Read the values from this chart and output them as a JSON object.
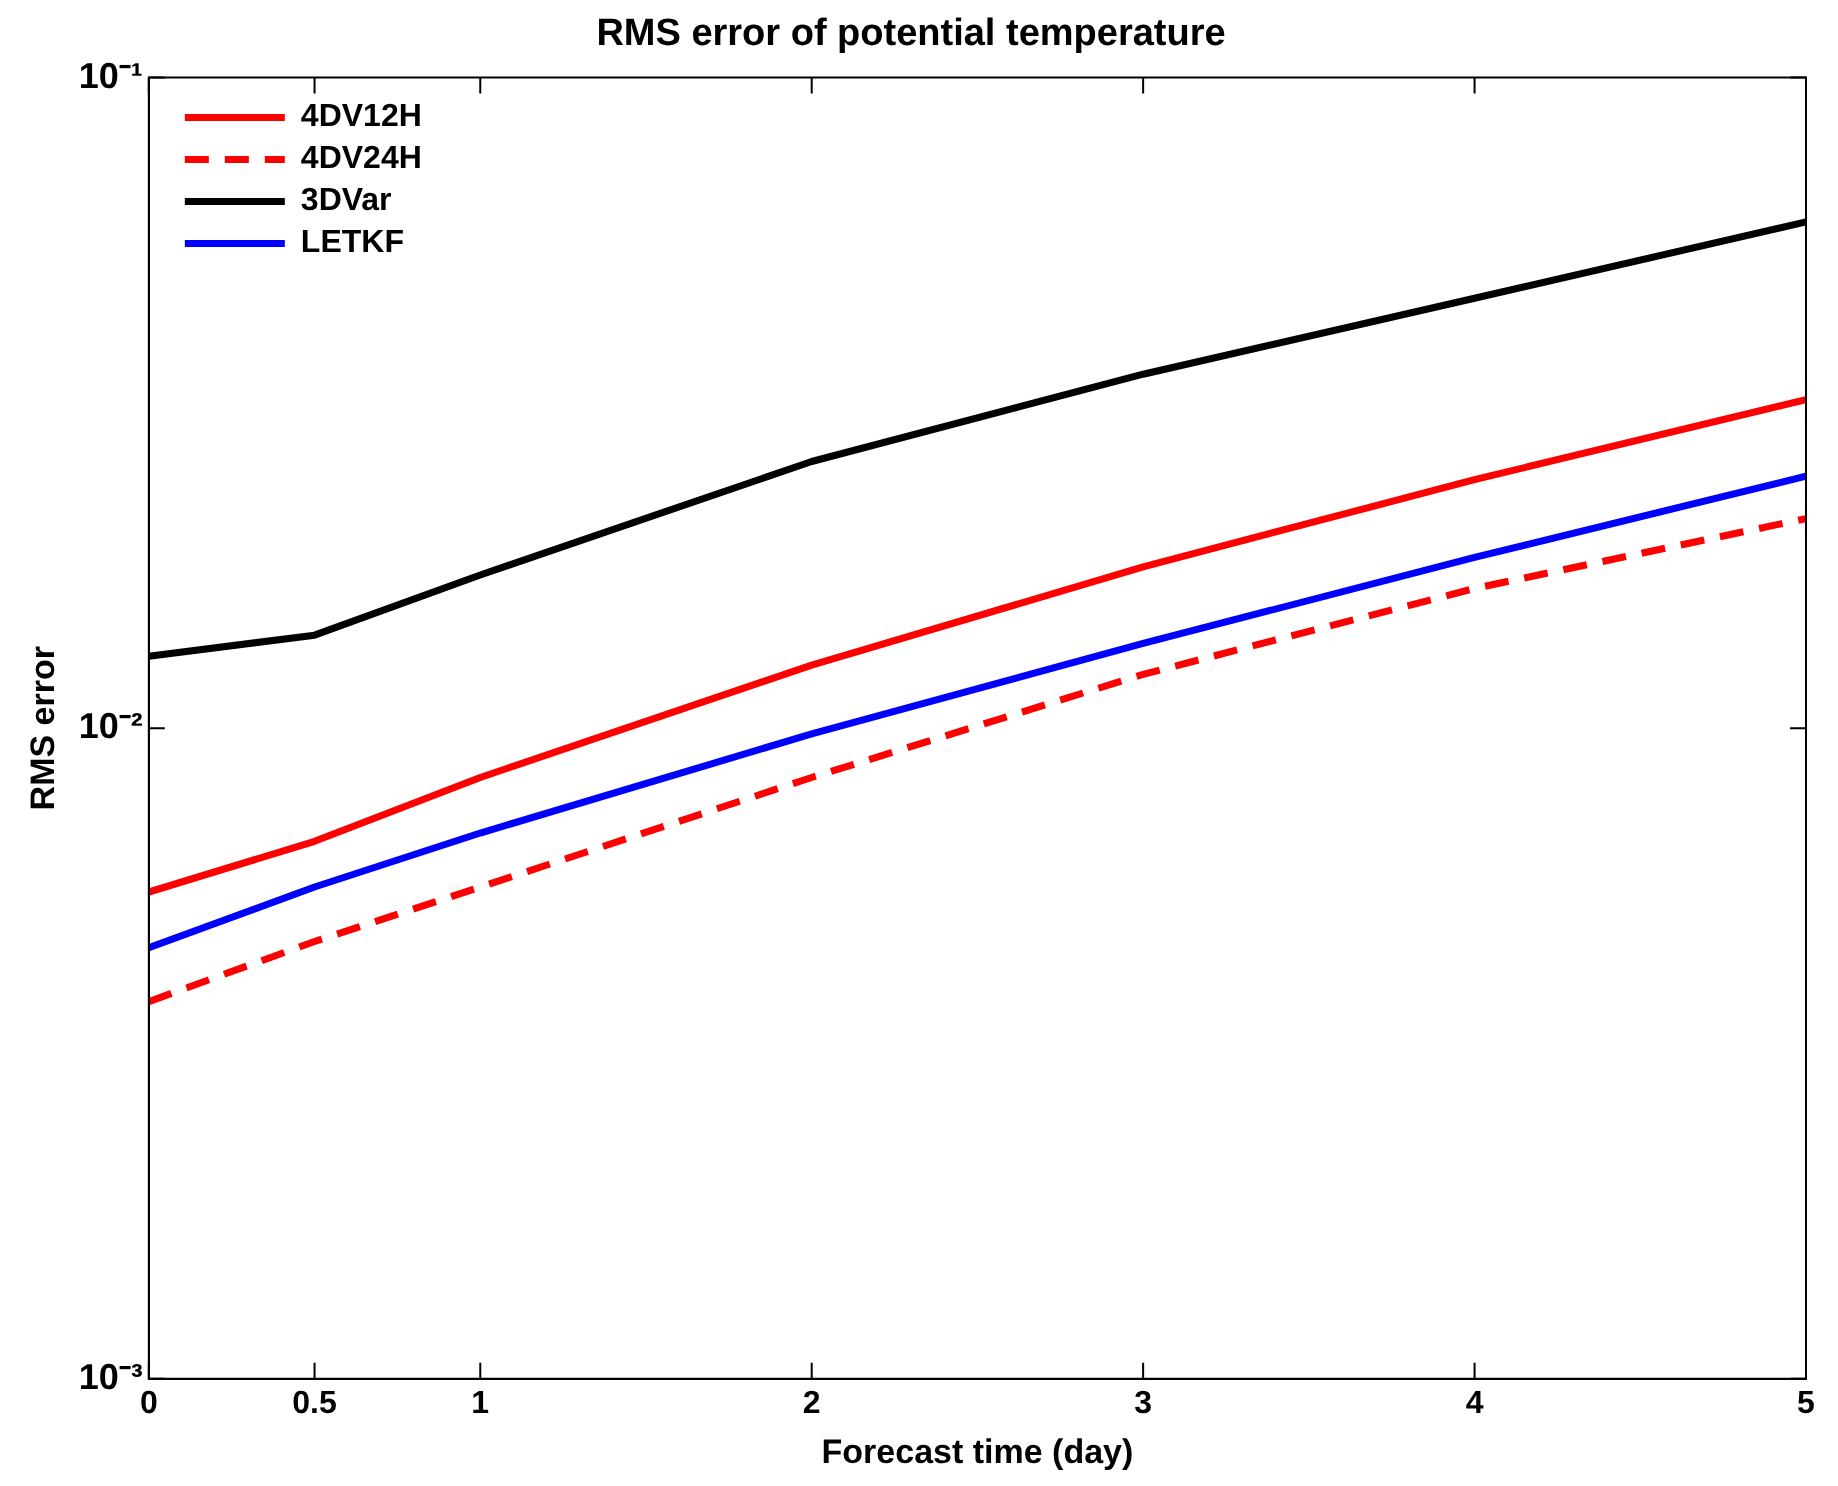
{
  "chart_data": {
    "type": "line",
    "title": "RMS error of potential temperature",
    "xlabel": "Forecast time (day)",
    "ylabel": "RMS error",
    "x": [
      0,
      0.5,
      1,
      2,
      3,
      4,
      5
    ],
    "series": [
      {
        "name": "4DV12H",
        "color": "#ff0000",
        "line_style": "solid",
        "values": [
          0.0056,
          0.0067,
          0.0084,
          0.0125,
          0.0177,
          0.0241,
          0.032
        ]
      },
      {
        "name": "4DV24H",
        "color": "#ff0000",
        "line_style": "dashed",
        "values": [
          0.0038,
          0.0047,
          0.0057,
          0.0084,
          0.0121,
          0.0164,
          0.021
        ]
      },
      {
        "name": "3DVar",
        "color": "#000000",
        "line_style": "solid",
        "values": [
          0.0129,
          0.0139,
          0.0172,
          0.0257,
          0.035,
          0.0458,
          0.06
        ]
      },
      {
        "name": "LETKF",
        "color": "#0000ff",
        "line_style": "solid",
        "values": [
          0.0046,
          0.0057,
          0.0069,
          0.0098,
          0.0135,
          0.0183,
          0.0244
        ]
      }
    ],
    "log": "y",
    "xlim": [
      0,
      5
    ],
    "xticks": [
      0,
      0.5,
      1,
      2,
      3,
      4,
      5
    ],
    "ylim": [
      0.001,
      0.1
    ],
    "yticks": [
      {
        "value": 0.001,
        "label": "10⁻³"
      },
      {
        "value": 0.01,
        "label": "10⁻²"
      },
      {
        "value": 0.1,
        "label": "10⁻¹"
      }
    ],
    "grid": false,
    "legend": "top left",
    "marker": "none"
  }
}
